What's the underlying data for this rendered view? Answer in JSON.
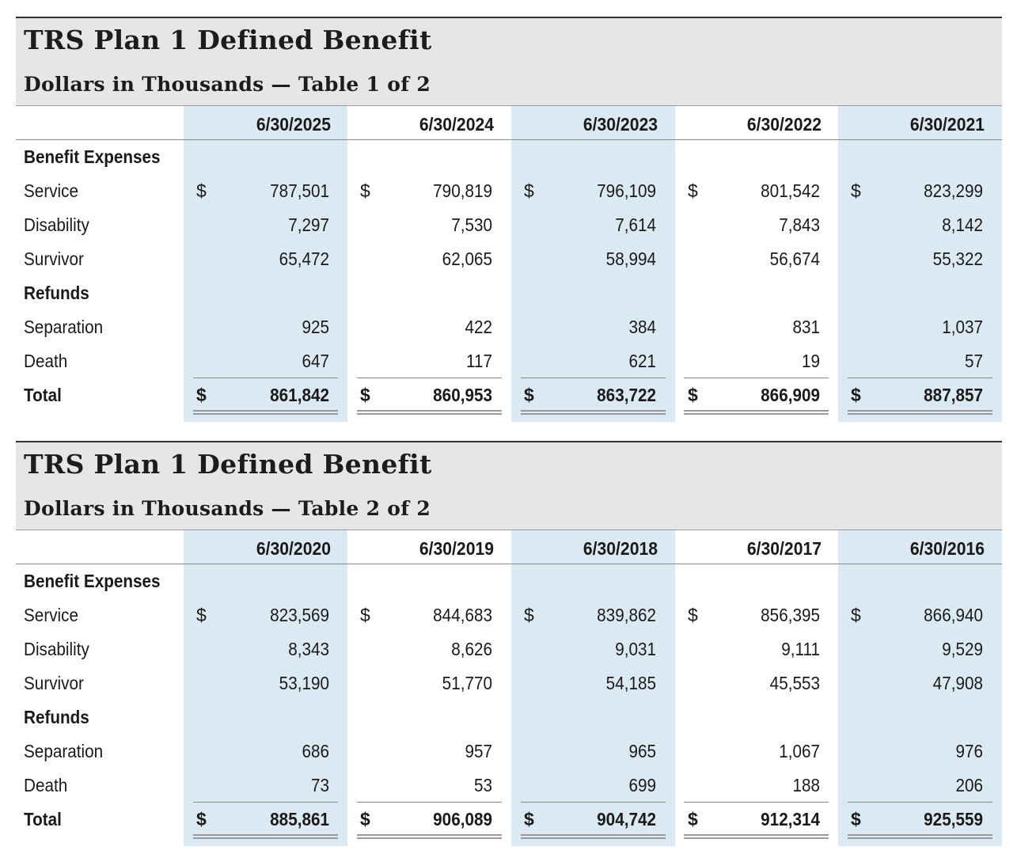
{
  "tables": [
    {
      "title": "TRS Plan 1 Defined Benefit",
      "subtitle": "Dollars in Thousands — Table 1 of 2",
      "dates": [
        "6/30/2025",
        "6/30/2024",
        "6/30/2023",
        "6/30/2022",
        "6/30/2021"
      ],
      "rows": [
        {
          "label": "Benefit Expenses",
          "heading": true,
          "values": []
        },
        {
          "label": "Service",
          "dollar": true,
          "values": [
            "787,501",
            "790,819",
            "796,109",
            "801,542",
            "823,299"
          ]
        },
        {
          "label": "Disability",
          "values": [
            "7,297",
            "7,530",
            "7,614",
            "7,843",
            "8,142"
          ]
        },
        {
          "label": "Survivor",
          "values": [
            "65,472",
            "62,065",
            "58,994",
            "56,674",
            "55,322"
          ]
        },
        {
          "label": "Refunds",
          "heading": true,
          "values": []
        },
        {
          "label": "Separation",
          "values": [
            "925",
            "422",
            "384",
            "831",
            "1,037"
          ]
        },
        {
          "label": "Death",
          "values": [
            "647",
            "117",
            "621",
            "19",
            "57"
          ]
        },
        {
          "label": "Total",
          "total": true,
          "dollar": true,
          "values": [
            "861,842",
            "860,953",
            "863,722",
            "866,909",
            "887,857"
          ]
        }
      ]
    },
    {
      "title": "TRS Plan 1 Defined Benefit",
      "subtitle": "Dollars in Thousands — Table 2 of 2",
      "dates": [
        "6/30/2020",
        "6/30/2019",
        "6/30/2018",
        "6/30/2017",
        "6/30/2016"
      ],
      "rows": [
        {
          "label": "Benefit Expenses",
          "heading": true,
          "values": []
        },
        {
          "label": "Service",
          "dollar": true,
          "values": [
            "823,569",
            "844,683",
            "839,862",
            "856,395",
            "866,940"
          ]
        },
        {
          "label": "Disability",
          "values": [
            "8,343",
            "8,626",
            "9,031",
            "9,111",
            "9,529"
          ]
        },
        {
          "label": "Survivor",
          "values": [
            "53,190",
            "51,770",
            "54,185",
            "45,553",
            "47,908"
          ]
        },
        {
          "label": "Refunds",
          "heading": true,
          "values": []
        },
        {
          "label": "Separation",
          "values": [
            "686",
            "957",
            "965",
            "1,067",
            "976"
          ]
        },
        {
          "label": "Death",
          "values": [
            "73",
            "53",
            "699",
            "188",
            "206"
          ]
        },
        {
          "label": "Total",
          "total": true,
          "dollar": true,
          "values": [
            "885,861",
            "906,089",
            "904,742",
            "912,314",
            "925,559"
          ]
        }
      ]
    }
  ],
  "currency_symbol": "$",
  "colors": {
    "header_bg": "#e6e6e6",
    "column_shade": "#dbeaf2"
  }
}
